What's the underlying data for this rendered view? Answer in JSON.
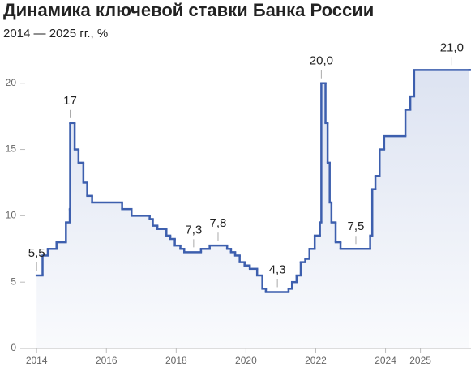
{
  "chart_data": {
    "type": "line",
    "step": true,
    "title": "Динамика ключевой ставки Банка России",
    "subtitle": "2014 — 2025 гг., %",
    "color": "#3d5fae",
    "fill_color": "#d9e0f0",
    "grid": false,
    "x": [
      2014.0,
      2014.17,
      2014.32,
      2014.57,
      2014.84,
      2014.95,
      2014.96,
      2015.09,
      2015.2,
      2015.34,
      2015.45,
      2015.59,
      2016.45,
      2016.72,
      2017.24,
      2017.33,
      2017.46,
      2017.72,
      2017.83,
      2017.96,
      2018.12,
      2018.23,
      2018.71,
      2018.96,
      2019.46,
      2019.57,
      2019.69,
      2019.82,
      2019.96,
      2020.11,
      2020.32,
      2020.47,
      2020.57,
      2021.22,
      2021.32,
      2021.45,
      2021.57,
      2021.7,
      2021.82,
      2021.97,
      2022.12,
      2022.16,
      2022.28,
      2022.34,
      2022.4,
      2022.45,
      2022.57,
      2022.71,
      2023.56,
      2023.62,
      2023.71,
      2023.83,
      2023.96,
      2024.57,
      2024.71,
      2024.82,
      2026.4
    ],
    "values": [
      5.5,
      7,
      7.5,
      8,
      9.5,
      10.5,
      17,
      15,
      14,
      12.5,
      11.5,
      11,
      10.5,
      10,
      9.75,
      9.25,
      9,
      8.5,
      8.25,
      7.75,
      7.5,
      7.25,
      7.5,
      7.75,
      7.5,
      7.25,
      7,
      6.5,
      6.25,
      6,
      5.5,
      4.5,
      4.25,
      4.5,
      5,
      5.5,
      6.5,
      6.75,
      7.5,
      8.5,
      9.5,
      20,
      17,
      14,
      11,
      9.5,
      8,
      7.5,
      8.5,
      12,
      13,
      15,
      16,
      18,
      19,
      21,
      21
    ],
    "xlim": [
      2012.95,
      2026.45
    ],
    "xticks": [
      2014,
      2016,
      2018,
      2020,
      2022,
      2024,
      2025
    ],
    "ylim": [
      0,
      22
    ],
    "yticks": [
      0,
      5,
      10,
      15,
      20
    ],
    "annotations": [
      {
        "x": 2014.0,
        "value": 5.5,
        "label": "5,5"
      },
      {
        "x": 2014.96,
        "value": 17,
        "label": "17"
      },
      {
        "x": 2018.5,
        "value": 7.25,
        "label": "7,3"
      },
      {
        "x": 2019.2,
        "value": 7.75,
        "label": "7,8"
      },
      {
        "x": 2020.9,
        "value": 4.25,
        "label": "4,3"
      },
      {
        "x": 2022.16,
        "value": 20,
        "label": "20,0"
      },
      {
        "x": 2023.15,
        "value": 7.5,
        "label": "7,5"
      },
      {
        "x": 2025.9,
        "value": 21,
        "label": "21,0"
      }
    ]
  }
}
